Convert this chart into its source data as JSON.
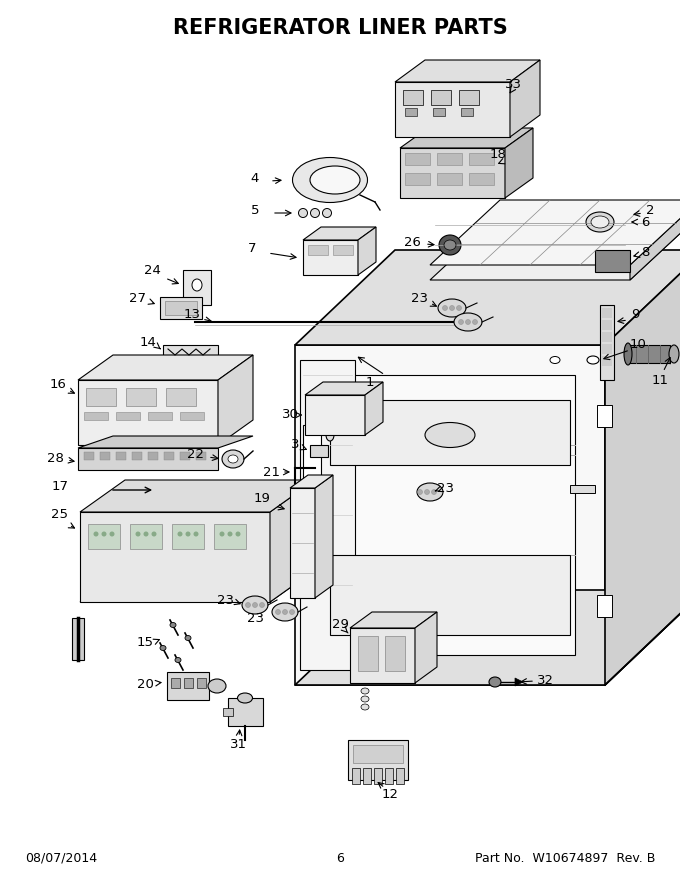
{
  "title": "REFRIGERATOR LINER PARTS",
  "title_fontsize": 15,
  "title_fontweight": "bold",
  "background_color": "#ffffff",
  "footer_left": "08/07/2014",
  "footer_center": "6",
  "footer_right": "Part No.  W10674897  Rev. B",
  "footer_fontsize": 9,
  "line_color": "#000000",
  "gray_fill": "#e8e8e8",
  "dark_gray_fill": "#cccccc",
  "light_fill": "#f4f4f4"
}
